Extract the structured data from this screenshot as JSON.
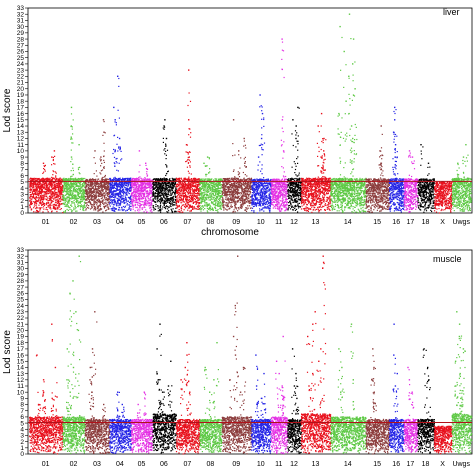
{
  "chart_data": [
    {
      "type": "scatter",
      "panel_label": "liver",
      "xlabel": "chromosome",
      "ylabel": "Lod score",
      "ylim": [
        0,
        33
      ],
      "yticks": [
        0,
        1,
        2,
        3,
        4,
        5,
        6,
        7,
        8,
        9,
        10,
        11,
        12,
        13,
        14,
        15,
        16,
        17,
        18,
        19,
        20,
        21,
        22,
        23,
        24,
        25,
        26,
        27,
        28,
        29,
        30,
        31,
        32,
        33
      ],
      "threshold": 5.1,
      "categories": [
        "01",
        "02",
        "03",
        "04",
        "05",
        "06",
        "07",
        "08",
        "09",
        "10",
        "11",
        "12",
        "13",
        "14",
        "15",
        "16",
        "17",
        "18",
        "X",
        "Uwgs"
      ],
      "series": [
        {
          "chromosome": "01",
          "color": "#e8111d",
          "bulk_max": 5.6,
          "peaks": [
            8,
            9,
            10
          ]
        },
        {
          "chromosome": "02",
          "color": "#5ec945",
          "bulk_max": 5.6,
          "peaks": [
            17,
            14,
            11,
            9
          ]
        },
        {
          "chromosome": "03",
          "color": "#8c3d3d",
          "bulk_max": 5.5,
          "peaks": [
            15,
            13,
            10,
            9
          ]
        },
        {
          "chromosome": "04",
          "color": "#2525e6",
          "bulk_max": 5.6,
          "peaks": [
            22,
            17,
            15,
            12,
            10
          ]
        },
        {
          "chromosome": "05",
          "color": "#e431e4",
          "bulk_max": 5.6,
          "peaks": [
            10,
            8
          ]
        },
        {
          "chromosome": "06",
          "color": "#000000",
          "bulk_max": 5.6,
          "peaks": [
            15,
            14,
            12
          ]
        },
        {
          "chromosome": "07",
          "color": "#e8111d",
          "bulk_max": 5.6,
          "peaks": [
            23,
            15,
            11,
            9
          ]
        },
        {
          "chromosome": "08",
          "color": "#5ec945",
          "bulk_max": 5.5,
          "peaks": [
            9,
            8
          ]
        },
        {
          "chromosome": "09",
          "color": "#8c3d3d",
          "bulk_max": 5.6,
          "peaks": [
            15,
            12,
            10,
            8
          ]
        },
        {
          "chromosome": "10",
          "color": "#2525e6",
          "bulk_max": 5.5,
          "peaks": [
            19,
            16,
            12,
            9
          ]
        },
        {
          "chromosome": "11",
          "color": "#e431e4",
          "bulk_max": 5.5,
          "peaks": [
            28,
            15,
            10
          ]
        },
        {
          "chromosome": "12",
          "color": "#000000",
          "bulk_max": 5.6,
          "peaks": [
            17,
            15,
            14,
            12
          ]
        },
        {
          "chromosome": "13",
          "color": "#e8111d",
          "bulk_max": 5.6,
          "peaks": [
            16,
            14,
            12,
            10,
            9
          ]
        },
        {
          "chromosome": "14",
          "color": "#5ec945",
          "bulk_max": 5.6,
          "peaks": [
            32,
            30,
            28,
            26,
            24,
            22,
            20,
            18,
            16,
            14,
            12
          ]
        },
        {
          "chromosome": "15",
          "color": "#8c3d3d",
          "bulk_max": 5.5,
          "peaks": [
            14,
            10,
            8
          ]
        },
        {
          "chromosome": "16",
          "color": "#2525e6",
          "bulk_max": 5.5,
          "peaks": [
            17,
            15,
            13,
            11,
            9
          ]
        },
        {
          "chromosome": "17",
          "color": "#e431e4",
          "bulk_max": 5.5,
          "peaks": [
            10,
            9
          ]
        },
        {
          "chromosome": "18",
          "color": "#000000",
          "bulk_max": 5.5,
          "peaks": [
            11,
            8
          ]
        },
        {
          "chromosome": "X",
          "color": "#e8111d",
          "bulk_max": 5.0,
          "peaks": []
        },
        {
          "chromosome": "Uwgs",
          "color": "#5ec945",
          "bulk_max": 5.6,
          "peaks": [
            11,
            9,
            8
          ]
        }
      ]
    },
    {
      "type": "scatter",
      "panel_label": "muscle",
      "xlabel": "",
      "ylabel": "Lod score",
      "ylim": [
        0,
        33
      ],
      "yticks": [
        0,
        1,
        2,
        3,
        4,
        5,
        6,
        7,
        8,
        9,
        10,
        11,
        12,
        13,
        14,
        15,
        16,
        17,
        18,
        19,
        20,
        21,
        22,
        23,
        24,
        25,
        26,
        27,
        28,
        29,
        30,
        31,
        32,
        33
      ],
      "threshold": 5.1,
      "categories": [
        "01",
        "02",
        "03",
        "04",
        "05",
        "06",
        "07",
        "08",
        "09",
        "10",
        "11",
        "12",
        "13",
        "14",
        "15",
        "16",
        "17",
        "18",
        "X",
        "Uwgs"
      ],
      "series": [
        {
          "chromosome": "01",
          "color": "#e8111d",
          "bulk_max": 6.0,
          "peaks": [
            21,
            16,
            14,
            12,
            10,
            9,
            8
          ]
        },
        {
          "chromosome": "02",
          "color": "#5ec945",
          "bulk_max": 6.0,
          "peaks": [
            32,
            28,
            26,
            23,
            20,
            17,
            14,
            12,
            10
          ]
        },
        {
          "chromosome": "03",
          "color": "#8c3d3d",
          "bulk_max": 5.6,
          "peaks": [
            23,
            17,
            14,
            12,
            10,
            8
          ]
        },
        {
          "chromosome": "04",
          "color": "#2525e6",
          "bulk_max": 5.6,
          "peaks": [
            10,
            8,
            7
          ]
        },
        {
          "chromosome": "05",
          "color": "#e431e4",
          "bulk_max": 5.6,
          "peaks": [
            10,
            8
          ]
        },
        {
          "chromosome": "06",
          "color": "#000000",
          "bulk_max": 6.5,
          "peaks": [
            21,
            17,
            15,
            13,
            12,
            11,
            10
          ]
        },
        {
          "chromosome": "07",
          "color": "#e8111d",
          "bulk_max": 5.6,
          "peaks": [
            18,
            16,
            14,
            12,
            10
          ]
        },
        {
          "chromosome": "08",
          "color": "#5ec945",
          "bulk_max": 5.6,
          "peaks": [
            18,
            14,
            12,
            10
          ]
        },
        {
          "chromosome": "09",
          "color": "#8c3d3d",
          "bulk_max": 6.0,
          "peaks": [
            32,
            24,
            19,
            16,
            14,
            12,
            10
          ]
        },
        {
          "chromosome": "10",
          "color": "#2525e6",
          "bulk_max": 5.6,
          "peaks": [
            16,
            13,
            11,
            9
          ]
        },
        {
          "chromosome": "11",
          "color": "#e431e4",
          "bulk_max": 6.0,
          "peaks": [
            19,
            15,
            13,
            11,
            9
          ]
        },
        {
          "chromosome": "12",
          "color": "#000000",
          "bulk_max": 5.6,
          "peaks": [
            17,
            13,
            11,
            9
          ]
        },
        {
          "chromosome": "13",
          "color": "#e8111d",
          "bulk_max": 6.5,
          "peaks": [
            32,
            31,
            23,
            21,
            19,
            17,
            15,
            13,
            11
          ]
        },
        {
          "chromosome": "14",
          "color": "#5ec945",
          "bulk_max": 6.0,
          "peaks": [
            21,
            17,
            14,
            12,
            10
          ]
        },
        {
          "chromosome": "15",
          "color": "#8c3d3d",
          "bulk_max": 5.6,
          "peaks": [
            17,
            14,
            12,
            10
          ]
        },
        {
          "chromosome": "16",
          "color": "#2525e6",
          "bulk_max": 5.6,
          "peaks": [
            21,
            16,
            13,
            11
          ]
        },
        {
          "chromosome": "17",
          "color": "#e431e4",
          "bulk_max": 5.6,
          "peaks": [
            14,
            12,
            10
          ]
        },
        {
          "chromosome": "18",
          "color": "#000000",
          "bulk_max": 5.6,
          "peaks": [
            17,
            14,
            12
          ]
        },
        {
          "chromosome": "X",
          "color": "#e8111d",
          "bulk_max": 4.5,
          "peaks": []
        },
        {
          "chromosome": "Uwgs",
          "color": "#5ec945",
          "bulk_max": 6.5,
          "peaks": [
            23,
            21,
            19,
            17,
            15,
            13,
            11,
            9
          ]
        }
      ]
    }
  ]
}
